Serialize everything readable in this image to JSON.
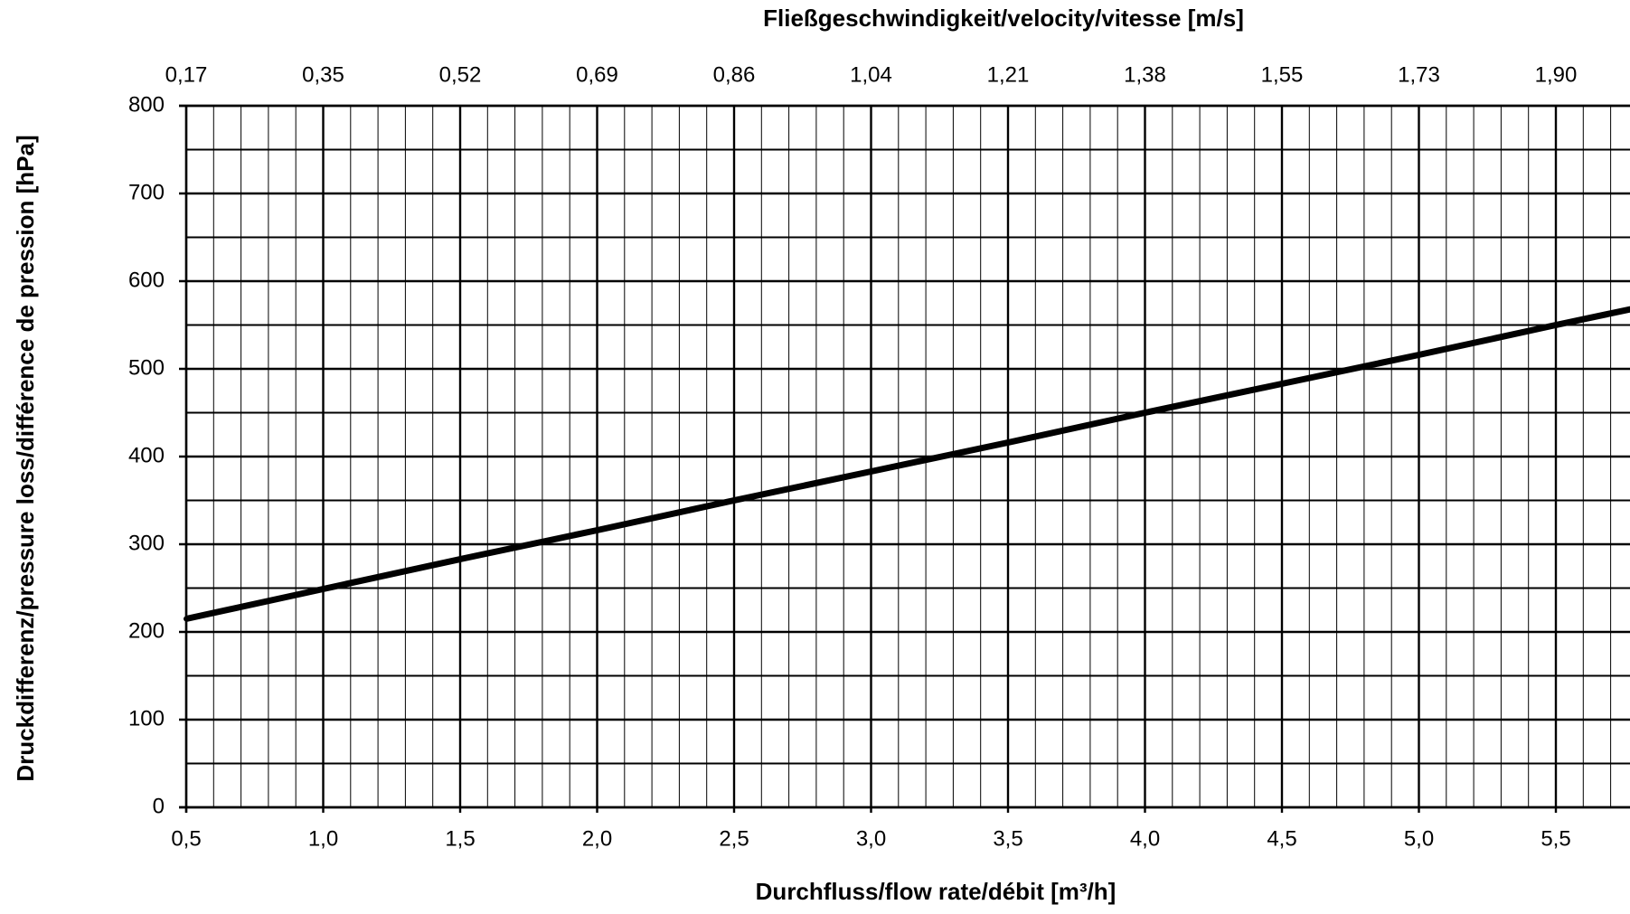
{
  "chart_data": {
    "type": "line",
    "title": "",
    "xlabel": "Durchfluss/flow rate/débit [m³/h]",
    "x2label": "Fließgeschwindigkeit/velocity/vitesse [m/s]",
    "ylabel": "Druckdifferenz/pressure loss/différence de pression [hPa]",
    "xlim": [
      0.5,
      6.0
    ],
    "ylim": [
      0,
      800
    ],
    "x_ticks": [
      "0,5",
      "1,0",
      "1,5",
      "2,0",
      "2,5",
      "3,0",
      "3,5",
      "4,0",
      "4,5",
      "5,0",
      "5,5"
    ],
    "x2_ticks": [
      "0,17",
      "0,35",
      "0,52",
      "0,69",
      "0,86",
      "1,04",
      "1,21",
      "1,38",
      "1,55",
      "1,73",
      "1,90"
    ],
    "y_ticks": [
      "0",
      "100",
      "200",
      "300",
      "400",
      "500",
      "600",
      "700",
      "800"
    ],
    "grid": true,
    "legend": "none",
    "line_color": "#000000",
    "series": [
      {
        "x": [
          0.5,
          1.0,
          1.5,
          2.0,
          2.5,
          3.0,
          3.5,
          4.0,
          4.5,
          5.0,
          5.5,
          6.0
        ],
        "y": [
          215,
          249,
          283,
          316,
          350,
          383,
          416,
          450,
          483,
          516,
          550,
          583
        ]
      }
    ]
  }
}
